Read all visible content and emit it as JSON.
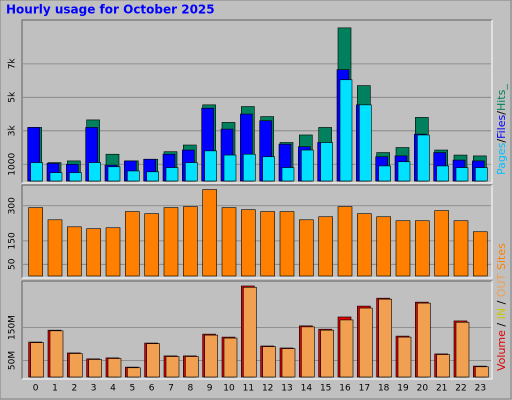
{
  "title": "Hourly usage for October 2025",
  "chart_data": [
    {
      "type": "bar",
      "ylim": [
        0,
        9500
      ],
      "yticks": [
        {
          "value": 1000,
          "label": "1000"
        },
        {
          "value": 3000,
          "label": "3k"
        },
        {
          "value": 5000,
          "label": "5k"
        },
        {
          "value": 7000,
          "label": "7k"
        }
      ],
      "grid": true,
      "series": [
        {
          "color": "#00805c",
          "values": [
            3200,
            1100,
            1200,
            3650,
            1600,
            1200,
            1300,
            1750,
            2150,
            4550,
            3500,
            4450,
            3850,
            2300,
            2750,
            3200,
            9150,
            5700,
            1700,
            2000,
            3800,
            1850,
            1550,
            1500
          ]
        },
        {
          "color": "#0000ff",
          "values": [
            3200,
            1050,
            1000,
            3200,
            950,
            1200,
            1300,
            1600,
            1850,
            4350,
            3100,
            4000,
            3600,
            2200,
            2050,
            2300,
            6650,
            4550,
            1450,
            1500,
            2800,
            1700,
            1250,
            1200
          ]
        },
        {
          "color": "#00e0ff",
          "values": [
            1100,
            500,
            500,
            1100,
            850,
            600,
            550,
            800,
            1100,
            1800,
            1550,
            1600,
            1450,
            800,
            1850,
            2300,
            6050,
            4550,
            900,
            1150,
            2750,
            900,
            800,
            800
          ]
        }
      ],
      "side_label": [
        {
          "text": "Pages",
          "color": "#00c0ff"
        },
        {
          "text": "/",
          "color": "#000000"
        },
        {
          "text": "Files",
          "color": "#0000ff"
        },
        {
          "text": "/",
          "color": "#000000"
        },
        {
          "text": "Hits_",
          "color": "#00805c"
        }
      ]
    },
    {
      "type": "bar",
      "ylim": [
        0,
        380
      ],
      "yticks": [
        50,
        150,
        300
      ],
      "grid": true,
      "series": [
        {
          "color": "#ff8000",
          "values": [
            292,
            240,
            210,
            202,
            206,
            275,
            266,
            292,
            296,
            369,
            292,
            283,
            275,
            275,
            240,
            253,
            296,
            266,
            253,
            236,
            236,
            279,
            236,
            189
          ]
        }
      ],
      "side_label": [
        {
          "text": "Sites",
          "color": "#ff8000"
        }
      ]
    },
    {
      "type": "bar",
      "ylim": [
        0,
        285
      ],
      "yticks": [
        {
          "value": 50,
          "label": "50M"
        },
        {
          "value": 150,
          "label": "150M"
        }
      ],
      "grid": true,
      "categories": [
        "0",
        "1",
        "2",
        "3",
        "4",
        "5",
        "6",
        "7",
        "8",
        "9",
        "10",
        "11",
        "12",
        "13",
        "14",
        "15",
        "16",
        "17",
        "18",
        "19",
        "20",
        "21",
        "22",
        "23"
      ],
      "series": [
        {
          "color": "#e00000",
          "values": [
            106,
            142,
            73,
            55,
            58,
            30,
            103,
            64,
            64,
            130,
            121,
            276,
            94,
            88,
            155,
            145,
            182,
            215,
            239,
            124,
            227,
            70,
            170,
            33
          ]
        },
        {
          "color": "#f0a050",
          "values": [
            104,
            140,
            71,
            53,
            56,
            28,
            101,
            62,
            62,
            127,
            118,
            272,
            92,
            86,
            152,
            142,
            173,
            209,
            236,
            121,
            224,
            68,
            166,
            31
          ]
        }
      ],
      "side_label": [
        {
          "text": "Volume",
          "color": "#e00000"
        },
        {
          "text": " / ",
          "color": "#000000"
        },
        {
          "text": "IN",
          "color": "#c8c800"
        },
        {
          "text": " / ",
          "color": "#000000"
        },
        {
          "text": "OUT",
          "color": "#f0a050"
        }
      ]
    }
  ]
}
